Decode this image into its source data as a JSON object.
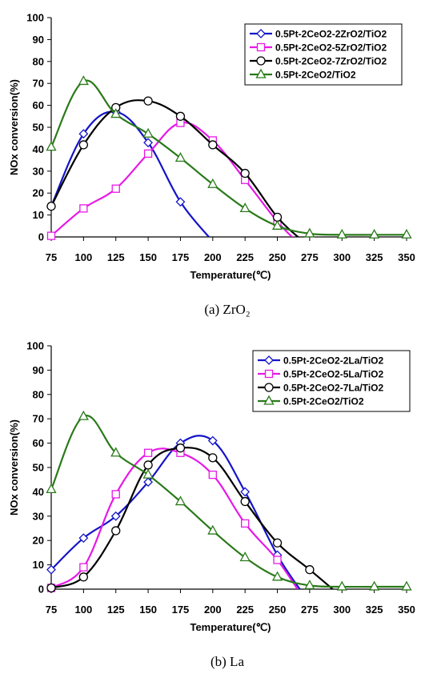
{
  "chart_data": [
    {
      "type": "line",
      "xlabel": "Temperature(℃)",
      "ylabel": "NOx conversion(%)",
      "xlim": [
        75,
        350
      ],
      "ylim": [
        0,
        100
      ],
      "x_ticks": [
        75,
        100,
        125,
        150,
        175,
        200,
        225,
        250,
        275,
        300,
        325,
        350
      ],
      "y_ticks": [
        0,
        10,
        20,
        30,
        40,
        50,
        60,
        70,
        80,
        90,
        100
      ],
      "grid": false,
      "legend_position": "top-right",
      "caption": "(a)  ZrO₂",
      "series": [
        {
          "name": "0.5Pt-2CeO2-2ZrO2/TiO2",
          "color": "#1414c8",
          "marker": "diamond",
          "x": [
            75,
            100,
            125,
            150,
            175,
            200
          ],
          "y": [
            14,
            47,
            57,
            43,
            16,
            -2
          ]
        },
        {
          "name": "0.5Pt-2CeO2-5ZrO2/TiO2",
          "color": "#e619e6",
          "marker": "square",
          "x": [
            75,
            100,
            125,
            150,
            175,
            200,
            225,
            250,
            265
          ],
          "y": [
            0.5,
            13,
            22,
            38,
            52,
            44,
            26,
            7,
            -2
          ]
        },
        {
          "name": "0.5Pt-2CeO2-7ZrO2/TiO2",
          "color": "#000000",
          "marker": "circle",
          "x": [
            75,
            100,
            125,
            150,
            175,
            200,
            225,
            250,
            270
          ],
          "y": [
            14,
            42,
            59,
            62,
            55,
            42,
            29,
            9,
            -2
          ]
        },
        {
          "name": "0.5Pt-2CeO2/TiO2",
          "color": "#2a7a1a",
          "marker": "triangle",
          "x": [
            75,
            100,
            125,
            150,
            175,
            200,
            225,
            250,
            275,
            300,
            325,
            350
          ],
          "y": [
            41,
            71,
            56,
            47,
            36,
            24,
            13,
            5,
            1.5,
            1,
            1,
            1
          ]
        }
      ]
    },
    {
      "type": "line",
      "xlabel": "Temperature(℃)",
      "ylabel": "NOx conversion(%)",
      "xlim": [
        75,
        350
      ],
      "ylim": [
        0,
        100
      ],
      "x_ticks": [
        75,
        100,
        125,
        150,
        175,
        200,
        225,
        250,
        275,
        300,
        325,
        350
      ],
      "y_ticks": [
        0,
        10,
        20,
        30,
        40,
        50,
        60,
        70,
        80,
        90,
        100
      ],
      "grid": false,
      "legend_position": "top-right",
      "caption": "(b)  La",
      "series": [
        {
          "name": "0.5Pt-2CeO2-2La/TiO2",
          "color": "#1414c8",
          "marker": "diamond",
          "x": [
            75,
            100,
            125,
            150,
            175,
            200,
            225,
            250,
            270
          ],
          "y": [
            8,
            21,
            30,
            44,
            60,
            61,
            40,
            14,
            -2
          ]
        },
        {
          "name": "0.5Pt-2CeO2-5La/TiO2",
          "color": "#e619e6",
          "marker": "square",
          "x": [
            75,
            100,
            125,
            150,
            175,
            200,
            225,
            250,
            268
          ],
          "y": [
            0.5,
            9,
            39,
            56,
            56,
            47,
            27,
            12,
            -2
          ]
        },
        {
          "name": "0.5Pt-2CeO2-7La/TiO2",
          "color": "#000000",
          "marker": "circle",
          "x": [
            75,
            100,
            125,
            150,
            175,
            200,
            225,
            250,
            275,
            295
          ],
          "y": [
            0.5,
            5,
            24,
            51,
            58,
            54,
            36,
            19,
            8,
            -1
          ]
        },
        {
          "name": "0.5Pt-2CeO2/TiO2",
          "color": "#2a7a1a",
          "marker": "triangle",
          "x": [
            75,
            100,
            125,
            150,
            175,
            200,
            225,
            250,
            275,
            300,
            325,
            350
          ],
          "y": [
            41,
            71,
            56,
            47,
            36,
            24,
            13,
            5,
            1.5,
            1,
            1,
            1
          ]
        }
      ]
    }
  ]
}
